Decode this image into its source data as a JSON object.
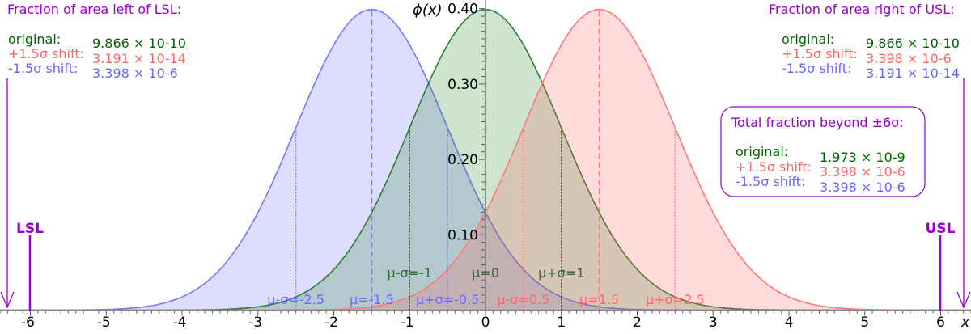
{
  "colors": {
    "original": "#006400",
    "plus_shift": "#ff6666",
    "minus_shift": "#6666ff",
    "limits": "#9900cc"
  },
  "chart_data": {
    "type": "area",
    "title": "",
    "ylabel": "ϕ(x)",
    "xlabel": "x",
    "xlim": [
      -6.4,
      6.4
    ],
    "ylim": [
      0,
      0.4
    ],
    "x_ticks": [
      -6,
      -5,
      -4,
      -3,
      -2,
      -1,
      0,
      1,
      2,
      3,
      4,
      5,
      6
    ],
    "y_ticks": [
      "0.10",
      "0.20",
      "0.30",
      "0.40"
    ],
    "series": [
      {
        "key": "minus",
        "mu": -1.5,
        "sigma": 1,
        "color": "#7777ff",
        "fill": "rgba(100,100,255,0.22)",
        "labels": [
          "μ-σ=-2.5",
          "μ=-1.5",
          "μ+σ=-0.5"
        ]
      },
      {
        "key": "original",
        "mu": 0,
        "sigma": 1,
        "color": "#2e7d32",
        "fill": "rgba(30,130,30,0.22)",
        "labels": [
          "μ-σ=-1",
          "μ=0",
          "μ+σ=1"
        ]
      },
      {
        "key": "plus",
        "mu": 1.5,
        "sigma": 1,
        "color": "#ff7777",
        "fill": "rgba(255,90,90,0.22)",
        "labels": [
          "μ-σ=0.5",
          "μ=1.5",
          "μ+σ=2.5"
        ]
      }
    ],
    "limits": {
      "lsl": -6,
      "usl": 6,
      "lsl_label": "LSL",
      "usl_label": "USL"
    }
  },
  "left_box": {
    "title": "Fraction of area left of LSL:",
    "rows": [
      {
        "label": "original:",
        "value": "9.866 × 10-10"
      },
      {
        "label": "+1.5σ shift:",
        "value": "3.191 × 10-14"
      },
      {
        "label": "-1.5σ shift:",
        "value": "3.398 × 10-6"
      }
    ]
  },
  "right_box": {
    "title": "Fraction of area right of USL:",
    "rows": [
      {
        "label": "original:",
        "value": "9.866 × 10-10"
      },
      {
        "label": "+1.5σ shift:",
        "value": "3.398 × 10-6"
      },
      {
        "label": "-1.5σ shift:",
        "value": "3.191 × 10-14"
      }
    ]
  },
  "total_box": {
    "title": "Total fraction beyond ±6σ:",
    "rows": [
      {
        "label": "original:",
        "value": "1.973 × 10-9"
      },
      {
        "label": "+1.5σ shift:",
        "value": "3.398 × 10-6"
      },
      {
        "label": "-1.5σ shift:",
        "value": "3.398 × 10-6"
      }
    ]
  }
}
